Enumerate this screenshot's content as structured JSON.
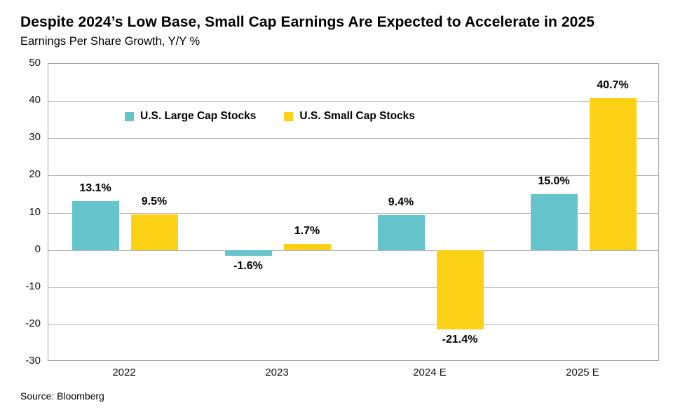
{
  "header": {
    "title": "Despite 2024’s Low Base, Small Cap Earnings Are Expected to Accelerate in 2025",
    "subtitle": "Earnings Per Share Growth, Y/Y %"
  },
  "source": "Source: Bloomberg",
  "colors": {
    "large_cap": "#66C5CC",
    "small_cap": "#FDD116",
    "gridline": "#B5B5B5",
    "plot_border": "#A0A0A0"
  },
  "chart_data": {
    "type": "bar",
    "title": "Despite 2024’s Low Base, Small Cap Earnings Are Expected to Accelerate in 2025",
    "subtitle": "Earnings Per Share Growth, Y/Y %",
    "categories": [
      "2022",
      "2023",
      "2024 E",
      "2025 E"
    ],
    "series": [
      {
        "name": "U.S. Large Cap Stocks",
        "color_key": "large_cap",
        "values": [
          13.1,
          -1.6,
          9.4,
          15.0
        ],
        "labels": [
          "13.1%",
          "-1.6%",
          "9.4%",
          "15.0%"
        ]
      },
      {
        "name": "U.S. Small Cap Stocks",
        "color_key": "small_cap",
        "values": [
          9.5,
          1.7,
          -21.4,
          40.7
        ],
        "labels": [
          "9.5%",
          "1.7%",
          "-21.4%",
          "40.7%"
        ]
      }
    ],
    "ylim": [
      -30,
      50
    ],
    "yticks": [
      50,
      40,
      30,
      20,
      10,
      0,
      -10,
      -20,
      -30
    ],
    "grid": true,
    "legend_position": "inside-top-left",
    "xlabel": "",
    "ylabel": ""
  }
}
